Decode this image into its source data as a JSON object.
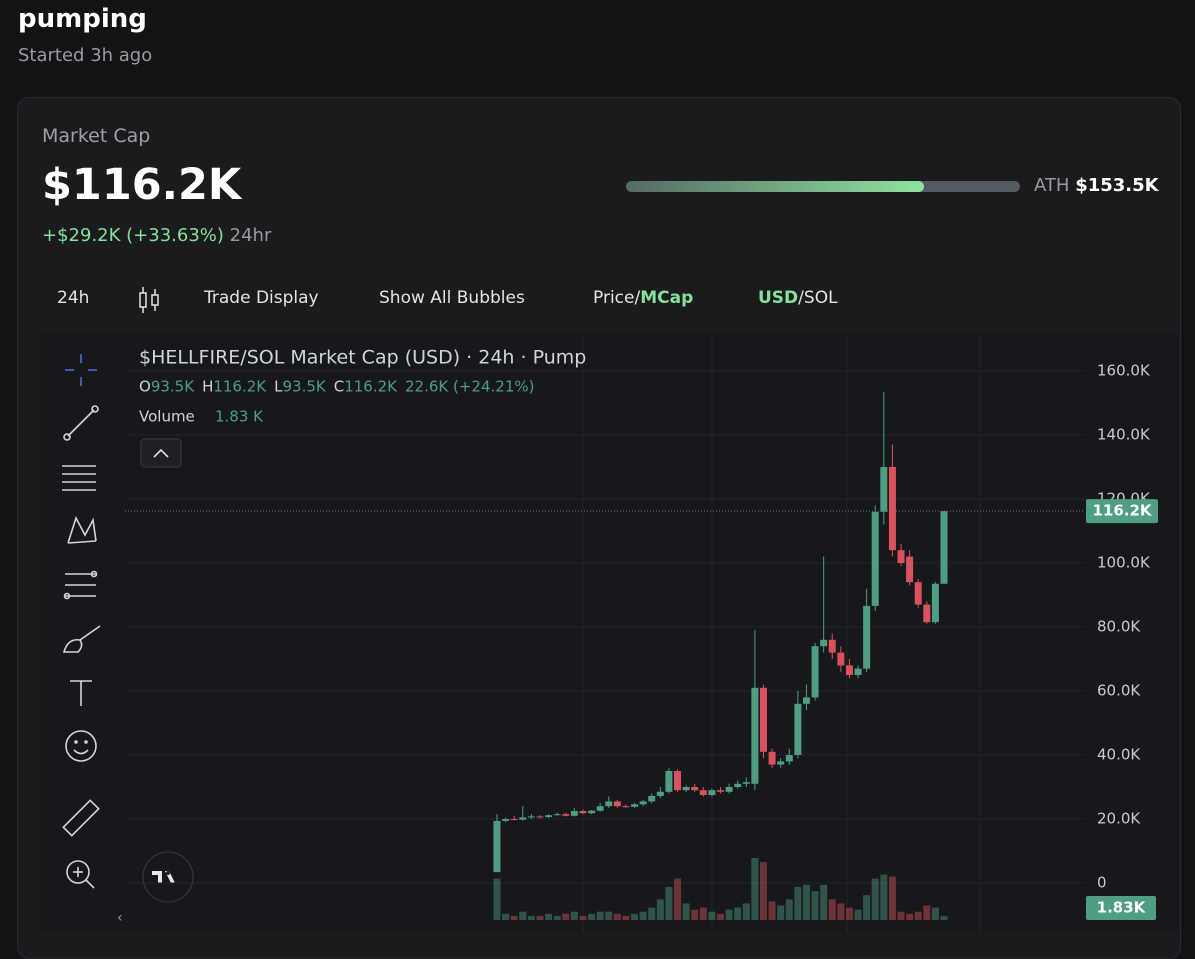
{
  "header": {
    "title": "pumping",
    "subtitle": "Started 3h ago"
  },
  "market_cap": {
    "label": "Market Cap",
    "current": {
      "value": 116200,
      "label": "$116.2K"
    },
    "change": "+$29.2K (+33.63%)",
    "period": "24hr",
    "ath_label": "ATH",
    "ath": {
      "value": 153500,
      "label": "$153.5K"
    }
  },
  "toolbar": {
    "interval": "24h",
    "trade_display": "Trade Display",
    "bubbles": "Show All Bubbles",
    "price_toggle": {
      "left": "Price",
      "sep": "/",
      "right": "MCap"
    },
    "currency_toggle": {
      "left": "USD",
      "sep": "/",
      "right": "SOL"
    }
  },
  "chart_data": {
    "type": "candlestick",
    "title": "$HELLFIRE/SOL Market Cap (USD) · 24h · Pump",
    "legend": {
      "ohlc": [
        {
          "key": "O",
          "value": "93.5K"
        },
        {
          "key": "H",
          "value": "116.2K"
        },
        {
          "key": "L",
          "value": "93.5K"
        },
        {
          "key": "C",
          "value": "116.2K"
        }
      ],
      "change": "22.6K (+24.21%)",
      "volume_label": "Volume",
      "volume_value": "1.83 K"
    },
    "open": [
      3400,
      19400,
      20000,
      19800,
      20500,
      20800,
      20600,
      21200,
      21500,
      21000,
      22500,
      21800,
      22600,
      24000,
      25500,
      24000,
      23800,
      24600,
      25500,
      27200,
      28500,
      35000,
      29000,
      30000,
      29000,
      27500,
      29000,
      28500,
      30000,
      31000,
      31000,
      61000,
      41000,
      37000,
      38000,
      40000,
      56000,
      58000,
      74000,
      76000,
      72000,
      68000,
      65000,
      67000,
      86600,
      116000,
      130000,
      104000,
      102000,
      94000,
      87000,
      81500,
      93500
    ],
    "high": [
      21500,
      20500,
      21000,
      24000,
      21500,
      21200,
      21500,
      22000,
      22000,
      23500,
      23000,
      22800,
      25000,
      27000,
      26000,
      24500,
      25000,
      26000,
      28000,
      30000,
      36000,
      35500,
      30500,
      31000,
      30000,
      29500,
      30000,
      31000,
      32000,
      33000,
      79000,
      62000,
      42000,
      39000,
      42000,
      60000,
      62000,
      75000,
      102000,
      78000,
      74000,
      70000,
      68000,
      92000,
      118000,
      153500,
      137000,
      106000,
      104000,
      95000,
      88000,
      94000,
      116200
    ],
    "low": [
      3400,
      19000,
      19500,
      19500,
      20000,
      20200,
      20300,
      21000,
      20800,
      20800,
      21500,
      21500,
      22300,
      23500,
      23500,
      23500,
      23500,
      24000,
      25000,
      26500,
      28000,
      28500,
      28500,
      28500,
      27000,
      27000,
      28000,
      28000,
      29500,
      30000,
      29000,
      39000,
      36000,
      36000,
      37000,
      39000,
      54000,
      57000,
      72000,
      70000,
      66000,
      64000,
      64000,
      66000,
      85000,
      112000,
      102000,
      99000,
      93000,
      86000,
      81000,
      81000,
      93500
    ],
    "close": [
      19400,
      20000,
      19800,
      20500,
      20800,
      20600,
      21200,
      21500,
      21000,
      22500,
      21800,
      22600,
      24000,
      25500,
      24000,
      23800,
      24600,
      25500,
      27200,
      28500,
      35000,
      29000,
      30000,
      29000,
      27500,
      29000,
      28500,
      30000,
      31000,
      31500,
      61000,
      41000,
      37000,
      38000,
      40000,
      56000,
      58000,
      74000,
      76000,
      72000,
      68000,
      65000,
      67000,
      86600,
      116000,
      130000,
      104000,
      100000,
      94000,
      87000,
      81500,
      93500,
      116200
    ],
    "volume": [
      20000,
      3000,
      2000,
      4000,
      2000,
      2000,
      3000,
      2000,
      3000,
      4000,
      2000,
      3000,
      4000,
      4000,
      3000,
      2000,
      3000,
      4000,
      6000,
      10000,
      16000,
      20000,
      8000,
      5000,
      6000,
      4000,
      3000,
      5000,
      6000,
      8000,
      30000,
      28000,
      9000,
      7000,
      10000,
      16000,
      17000,
      14000,
      17000,
      10000,
      8000,
      6000,
      5000,
      12000,
      20000,
      22000,
      21000,
      4000,
      3000,
      4000,
      7000,
      6000,
      1830
    ],
    "price_badge": "116.2K",
    "volume_badge": "1.83K",
    "ylim": [
      -15625,
      171250
    ],
    "yticks": [
      0,
      {
        "value": 20000,
        "label": "20.0K"
      },
      {
        "value": 40000,
        "label": "40.0K"
      },
      {
        "value": 60000,
        "label": "60.0K"
      },
      {
        "value": 80000,
        "label": "80.0K"
      },
      {
        "value": 100000,
        "label": "100.0K"
      },
      {
        "value": 120000,
        "label": "120.0K"
      },
      {
        "value": 140000,
        "label": "140.0K"
      },
      {
        "value": 160000,
        "label": "160.0K"
      }
    ],
    "grid": true,
    "up_color": "#4f9e84",
    "down_color": "#d9535f"
  }
}
